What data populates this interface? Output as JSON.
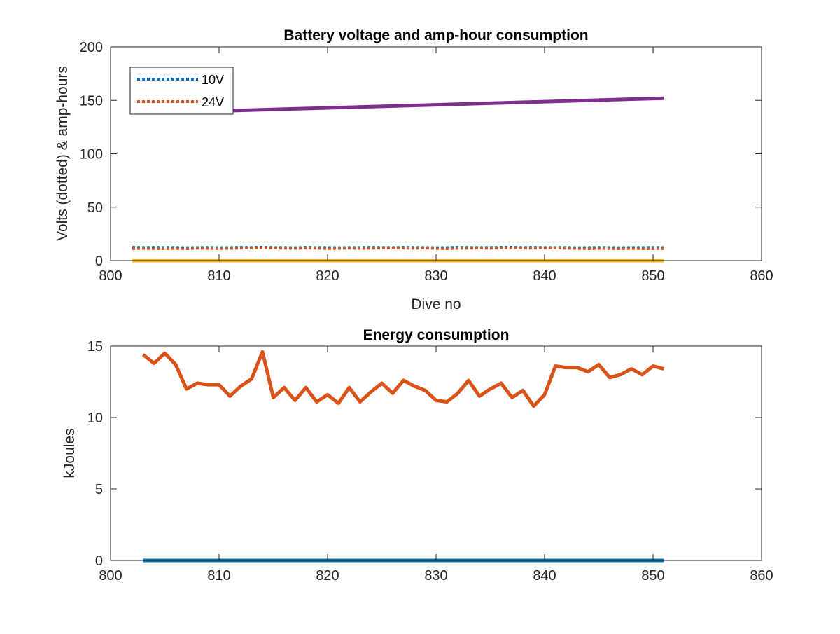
{
  "chart_data": [
    {
      "type": "line",
      "title": "Battery voltage and amp-hour consumption",
      "xlabel": "Dive no",
      "ylabel": "Volts (dotted) & amp-hours",
      "xlim": [
        800,
        860
      ],
      "ylim": [
        0,
        200
      ],
      "xticks": [
        800,
        810,
        820,
        830,
        840,
        850,
        860
      ],
      "yticks": [
        0,
        50,
        100,
        150,
        200
      ],
      "legend_position": "top-left",
      "series": [
        {
          "name": "10V",
          "style": "dotted",
          "color": "#0072BD",
          "x": [
            802,
            803,
            804,
            805,
            806,
            807,
            808,
            809,
            810,
            811,
            812,
            813,
            814,
            815,
            816,
            817,
            818,
            819,
            820,
            821,
            822,
            823,
            824,
            825,
            826,
            827,
            828,
            829,
            830,
            831,
            832,
            833,
            834,
            835,
            836,
            837,
            838,
            839,
            840,
            841,
            842,
            843,
            844,
            845,
            846,
            847,
            848,
            849,
            850,
            851
          ],
          "y": [
            12.5,
            12.4,
            12.5,
            12.3,
            12.4,
            12.2,
            12.3,
            12.4,
            12.2,
            12.3,
            12.5,
            12.4,
            12.6,
            12.3,
            12.4,
            12.2,
            12.5,
            12.3,
            12.4,
            12.2,
            12.4,
            12.3,
            12.5,
            12.4,
            12.3,
            12.5,
            12.4,
            12.3,
            12.2,
            12.3,
            12.5,
            12.4,
            12.3,
            12.4,
            12.5,
            12.6,
            12.4,
            12.5,
            12.4,
            12.3,
            12.4,
            12.2,
            12.3,
            12.4,
            12.3,
            12.2,
            12.4,
            12.3,
            12.4,
            12.3
          ]
        },
        {
          "name": "24V",
          "style": "dotted",
          "color": "#D95319",
          "x": [
            802,
            803,
            804,
            805,
            806,
            807,
            808,
            809,
            810,
            811,
            812,
            813,
            814,
            815,
            816,
            817,
            818,
            819,
            820,
            821,
            822,
            823,
            824,
            825,
            826,
            827,
            828,
            829,
            830,
            831,
            832,
            833,
            834,
            835,
            836,
            837,
            838,
            839,
            840,
            841,
            842,
            843,
            844,
            845,
            846,
            847,
            848,
            849,
            850,
            851
          ],
          "y": [
            11.0,
            11.3,
            11.1,
            11.0,
            11.2,
            11.0,
            11.4,
            11.2,
            11.1,
            11.3,
            11.5,
            11.8,
            12.0,
            11.7,
            11.5,
            11.3,
            11.6,
            11.4,
            11.1,
            11.3,
            11.5,
            11.2,
            11.4,
            11.6,
            11.8,
            11.5,
            11.3,
            11.7,
            11.2,
            11.0,
            11.3,
            11.5,
            11.6,
            11.4,
            11.7,
            11.9,
            11.6,
            11.5,
            11.8,
            11.6,
            11.4,
            11.2,
            11.0,
            11.3,
            11.1,
            11.0,
            11.2,
            11.1,
            11.0,
            11.1
          ]
        },
        {
          "style": "solid",
          "color": "#FFB400",
          "x": [
            802,
            851
          ],
          "y": [
            0,
            0
          ]
        },
        {
          "style": "solid",
          "color": "#7E2F8E",
          "x": [
            810,
            851
          ],
          "y": [
            140,
            152
          ]
        }
      ]
    },
    {
      "type": "line",
      "title": "Energy consumption",
      "xlabel": "",
      "ylabel": "kJoules",
      "xlim": [
        800,
        860
      ],
      "ylim": [
        0,
        15
      ],
      "xticks": [
        800,
        810,
        820,
        830,
        840,
        850,
        860
      ],
      "yticks": [
        0,
        5,
        10,
        15
      ],
      "series": [
        {
          "style": "solid",
          "color": "#D95319",
          "x": [
            803,
            804,
            805,
            806,
            807,
            808,
            809,
            810,
            811,
            812,
            813,
            814,
            815,
            816,
            817,
            818,
            819,
            820,
            821,
            822,
            823,
            824,
            825,
            826,
            827,
            828,
            829,
            830,
            831,
            832,
            833,
            834,
            835,
            836,
            837,
            838,
            839,
            840,
            841,
            842,
            843,
            844,
            845,
            846,
            847,
            848,
            849,
            850,
            851
          ],
          "y": [
            14.4,
            13.8,
            14.5,
            13.7,
            12.0,
            12.4,
            12.3,
            12.3,
            11.5,
            12.2,
            12.7,
            14.6,
            11.4,
            12.1,
            11.2,
            12.1,
            11.1,
            11.6,
            11.0,
            12.1,
            11.1,
            11.8,
            12.4,
            11.7,
            12.6,
            12.2,
            11.9,
            11.2,
            11.1,
            11.7,
            12.6,
            11.5,
            12.0,
            12.4,
            11.4,
            11.9,
            10.8,
            11.6,
            13.6,
            13.5,
            13.5,
            13.2,
            13.7,
            12.8,
            13.0,
            13.4,
            13.0,
            13.6,
            13.4
          ]
        },
        {
          "style": "solid",
          "color": "#0072BD",
          "x": [
            803,
            851
          ],
          "y": [
            0,
            0
          ]
        }
      ]
    }
  ]
}
